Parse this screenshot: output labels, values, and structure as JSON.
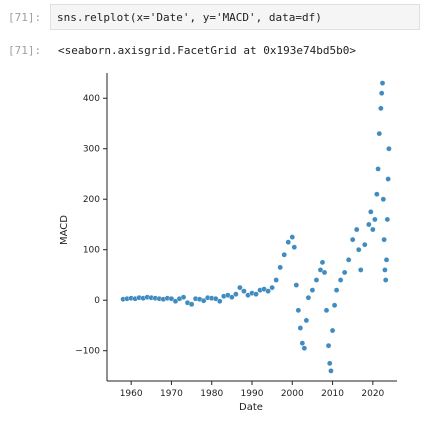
{
  "cell_input": {
    "prompt": "[71]:",
    "code": "sns.relplot(x='Date', y='MACD', data=df)"
  },
  "cell_output": {
    "prompt": "[71]:",
    "text": "<seaborn.axisgrid.FacetGrid at 0x193e74bd5b0>"
  },
  "chart_data": {
    "type": "scatter",
    "xlabel": "Date",
    "ylabel": "MACD",
    "xlim": [
      1954,
      2026
    ],
    "ylim": [
      -160,
      450
    ],
    "xticks": [
      "1960",
      "1970",
      "1980",
      "1990",
      "2000",
      "2010",
      "2020"
    ],
    "yticks": [
      "-100",
      "0",
      "100",
      "200",
      "300",
      "400"
    ],
    "marker_color": "#1f77b4",
    "grid": false,
    "points": [
      [
        1958,
        2
      ],
      [
        1959,
        3
      ],
      [
        1960,
        4
      ],
      [
        1961,
        3
      ],
      [
        1962,
        5
      ],
      [
        1963,
        4
      ],
      [
        1964,
        6
      ],
      [
        1965,
        5
      ],
      [
        1966,
        4
      ],
      [
        1967,
        3
      ],
      [
        1968,
        2
      ],
      [
        1969,
        4
      ],
      [
        1970,
        3
      ],
      [
        1971,
        -2
      ],
      [
        1972,
        3
      ],
      [
        1973,
        6
      ],
      [
        1974,
        -5
      ],
      [
        1975,
        -8
      ],
      [
        1976,
        3
      ],
      [
        1977,
        2
      ],
      [
        1978,
        -1
      ],
      [
        1979,
        5
      ],
      [
        1980,
        4
      ],
      [
        1981,
        3
      ],
      [
        1982,
        -2
      ],
      [
        1983,
        8
      ],
      [
        1984,
        10
      ],
      [
        1985,
        6
      ],
      [
        1986,
        12
      ],
      [
        1987,
        25
      ],
      [
        1988,
        18
      ],
      [
        1989,
        10
      ],
      [
        1990,
        14
      ],
      [
        1991,
        12
      ],
      [
        1992,
        20
      ],
      [
        1993,
        22
      ],
      [
        1994,
        18
      ],
      [
        1995,
        25
      ],
      [
        1996,
        40
      ],
      [
        1997,
        65
      ],
      [
        1998,
        90
      ],
      [
        1999,
        115
      ],
      [
        2000,
        125
      ],
      [
        2000.5,
        105
      ],
      [
        2001,
        30
      ],
      [
        2001.5,
        -20
      ],
      [
        2002,
        -55
      ],
      [
        2002.5,
        -85
      ],
      [
        2003,
        -95
      ],
      [
        2003.5,
        -40
      ],
      [
        2004,
        5
      ],
      [
        2005,
        20
      ],
      [
        2006,
        40
      ],
      [
        2007,
        60
      ],
      [
        2007.5,
        75
      ],
      [
        2008,
        55
      ],
      [
        2008.5,
        -20
      ],
      [
        2009,
        -90
      ],
      [
        2009.3,
        -125
      ],
      [
        2009.6,
        -140
      ],
      [
        2010,
        -60
      ],
      [
        2010.5,
        -10
      ],
      [
        2011,
        20
      ],
      [
        2012,
        40
      ],
      [
        2013,
        55
      ],
      [
        2014,
        80
      ],
      [
        2015,
        120
      ],
      [
        2016,
        140
      ],
      [
        2016.5,
        100
      ],
      [
        2017,
        60
      ],
      [
        2018,
        110
      ],
      [
        2019,
        150
      ],
      [
        2019.5,
        175
      ],
      [
        2020,
        140
      ],
      [
        2020.5,
        160
      ],
      [
        2021,
        210
      ],
      [
        2021.3,
        260
      ],
      [
        2021.6,
        330
      ],
      [
        2022,
        380
      ],
      [
        2022.2,
        410
      ],
      [
        2022.4,
        430
      ],
      [
        2022.6,
        200
      ],
      [
        2022.8,
        120
      ],
      [
        2023,
        60
      ],
      [
        2023.2,
        40
      ],
      [
        2023.4,
        80
      ],
      [
        2023.6,
        160
      ],
      [
        2023.8,
        240
      ],
      [
        2024,
        300
      ]
    ]
  }
}
